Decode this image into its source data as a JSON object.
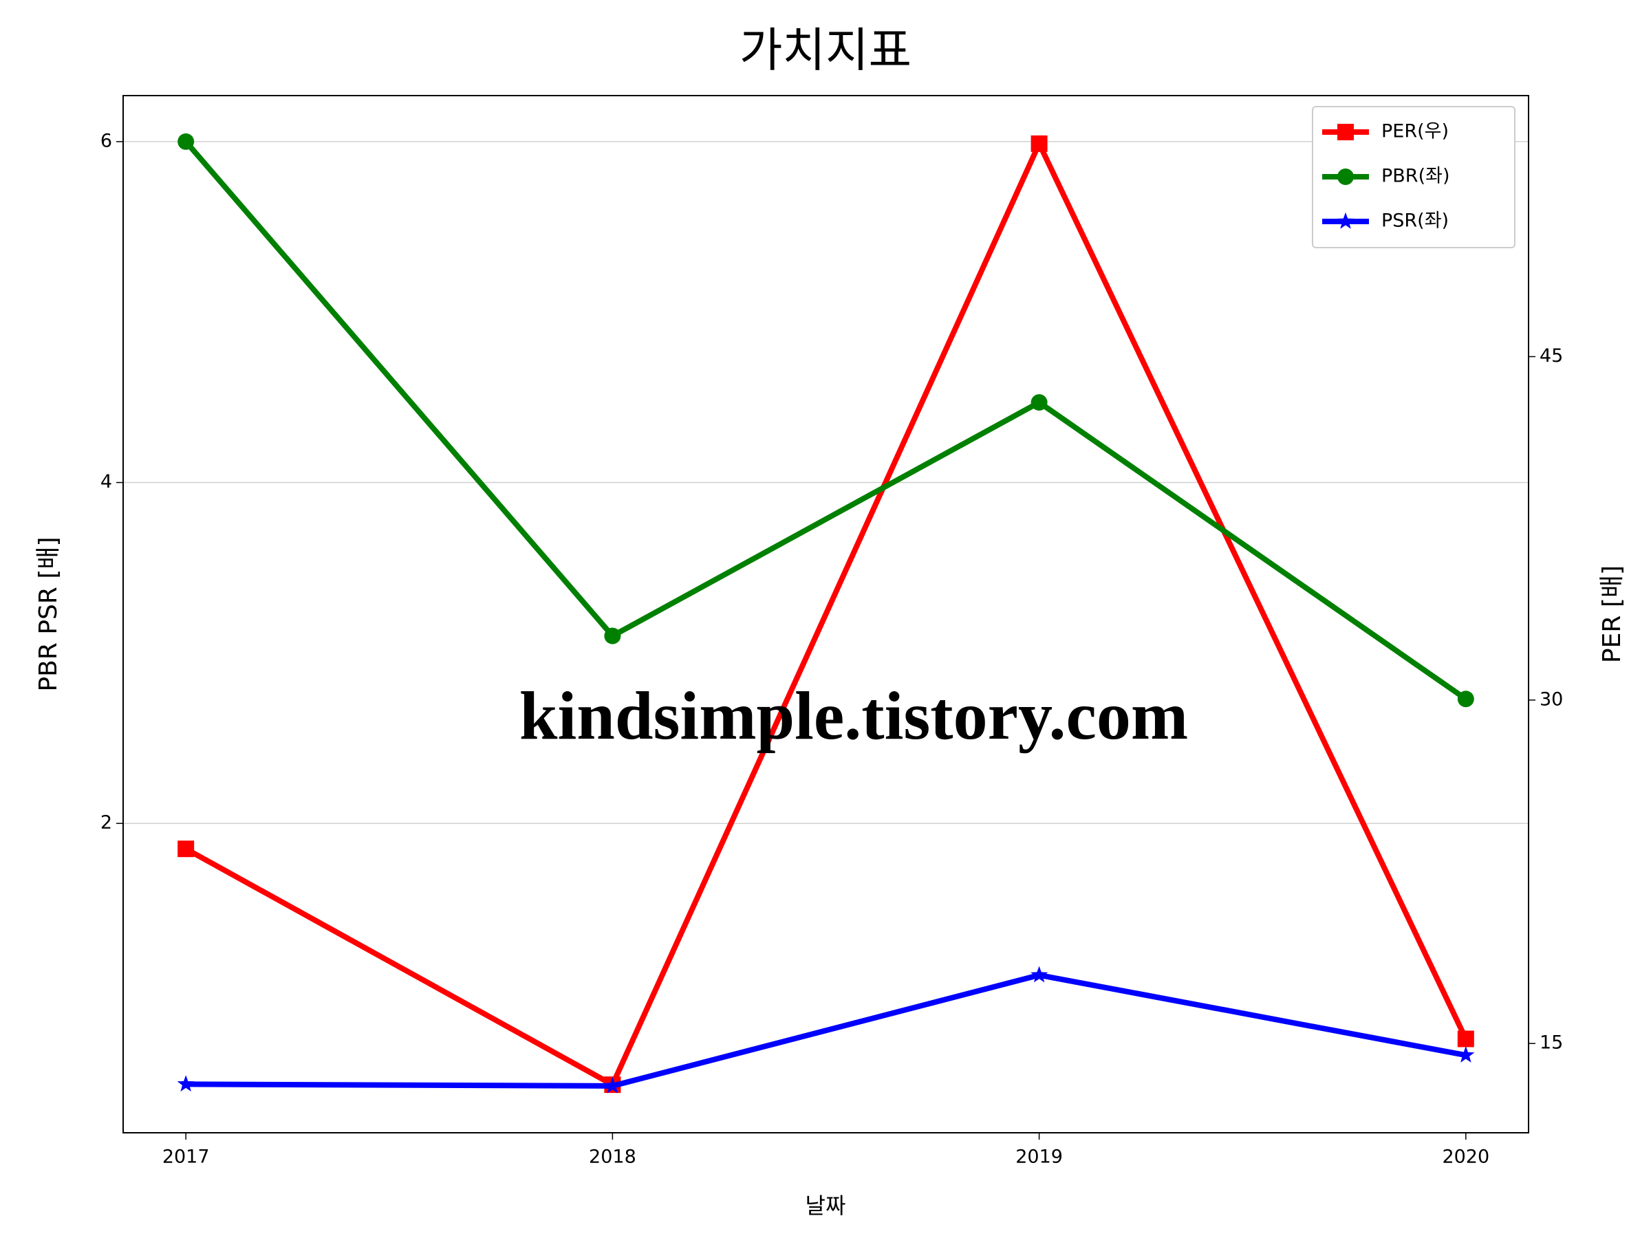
{
  "chart_data": {
    "type": "line",
    "title": "가치지표",
    "xlabel": "날짜",
    "ylabel": "PBR PSR [배]",
    "y2label": "PER [배]",
    "ylabel_color": "#008000",
    "y2label_color": "#ff0000",
    "categories": [
      "2017",
      "2018",
      "2019",
      "2020"
    ],
    "series": [
      {
        "name": "PER(우)",
        "color": "#ff0000",
        "marker": "square",
        "axis": "y2",
        "values": [
          23.5,
          13.2,
          54.3,
          15.2
        ]
      },
      {
        "name": "PBR(좌)",
        "color": "#008000",
        "marker": "circle",
        "values": [
          6.0,
          3.1,
          4.47,
          2.73
        ]
      },
      {
        "name": "PSR(좌)",
        "color": "#0000ff",
        "marker": "star",
        "values": [
          0.47,
          0.46,
          1.11,
          0.64
        ]
      }
    ],
    "ylim": [
      0.185,
      6.27
    ],
    "yticks": [
      2,
      4,
      6
    ],
    "y2lim": [
      11.1,
      56.4
    ],
    "y2ticks": [
      15,
      30,
      45
    ],
    "grid": true,
    "legend": "upper right",
    "annotation": {
      "text": "kindsimple.tistory.com",
      "color": "#e3a6ec"
    }
  }
}
